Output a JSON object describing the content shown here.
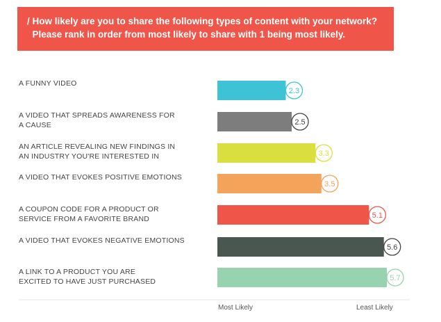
{
  "question": {
    "line1": "/ How likely are you to share the following types of content with your network?",
    "line2": "  Please rank in order from most likely to share with 1 being most likely."
  },
  "chart_data": {
    "type": "bar",
    "orientation": "horizontal",
    "title": "/ How likely are you to share the following types of content with your network? Please rank in order from most likely to share with 1 being most likely.",
    "categories": [
      "A FUNNY VIDEO",
      "A VIDEO THAT SPREADS AWARENESS FOR A CAUSE",
      "AN ARTICLE REVEALING NEW FINDINGS IN AN INDUSTRY YOU'RE INTERESTED IN",
      "A VIDEO THAT EVOKES POSITIVE EMOTIONS",
      "A COUPON CODE FOR A PRODUCT OR SERVICE FROM A FAVORITE BRAND",
      "A VIDEO THAT EVOKES NEGATIVE EMOTIONS",
      "A LINK TO A PRODUCT YOU ARE EXCITED TO HAVE JUST PURCHASED"
    ],
    "values": [
      2.3,
      2.5,
      3.3,
      3.5,
      5.1,
      5.6,
      5.7
    ],
    "value_labels": [
      "2.3",
      "2.5",
      "3.3",
      "3.5",
      "5.1",
      "5.6",
      "5.7"
    ],
    "colors": [
      "#3ec3d6",
      "#7d7d7d",
      "#d8df3e",
      "#f3a35a",
      "#ef5548",
      "#4a5750",
      "#98d3b0"
    ],
    "bubble_colors": [
      "#3ec3d6",
      "#444444",
      "#d8df3e",
      "#f3a35a",
      "#ef5548",
      "#444444",
      "#98d3b0"
    ],
    "xlabel_left": "Most Likely",
    "xlabel_right": "Least Likely",
    "xlim": [
      0,
      5.7
    ],
    "grid": false,
    "legend": "none"
  }
}
